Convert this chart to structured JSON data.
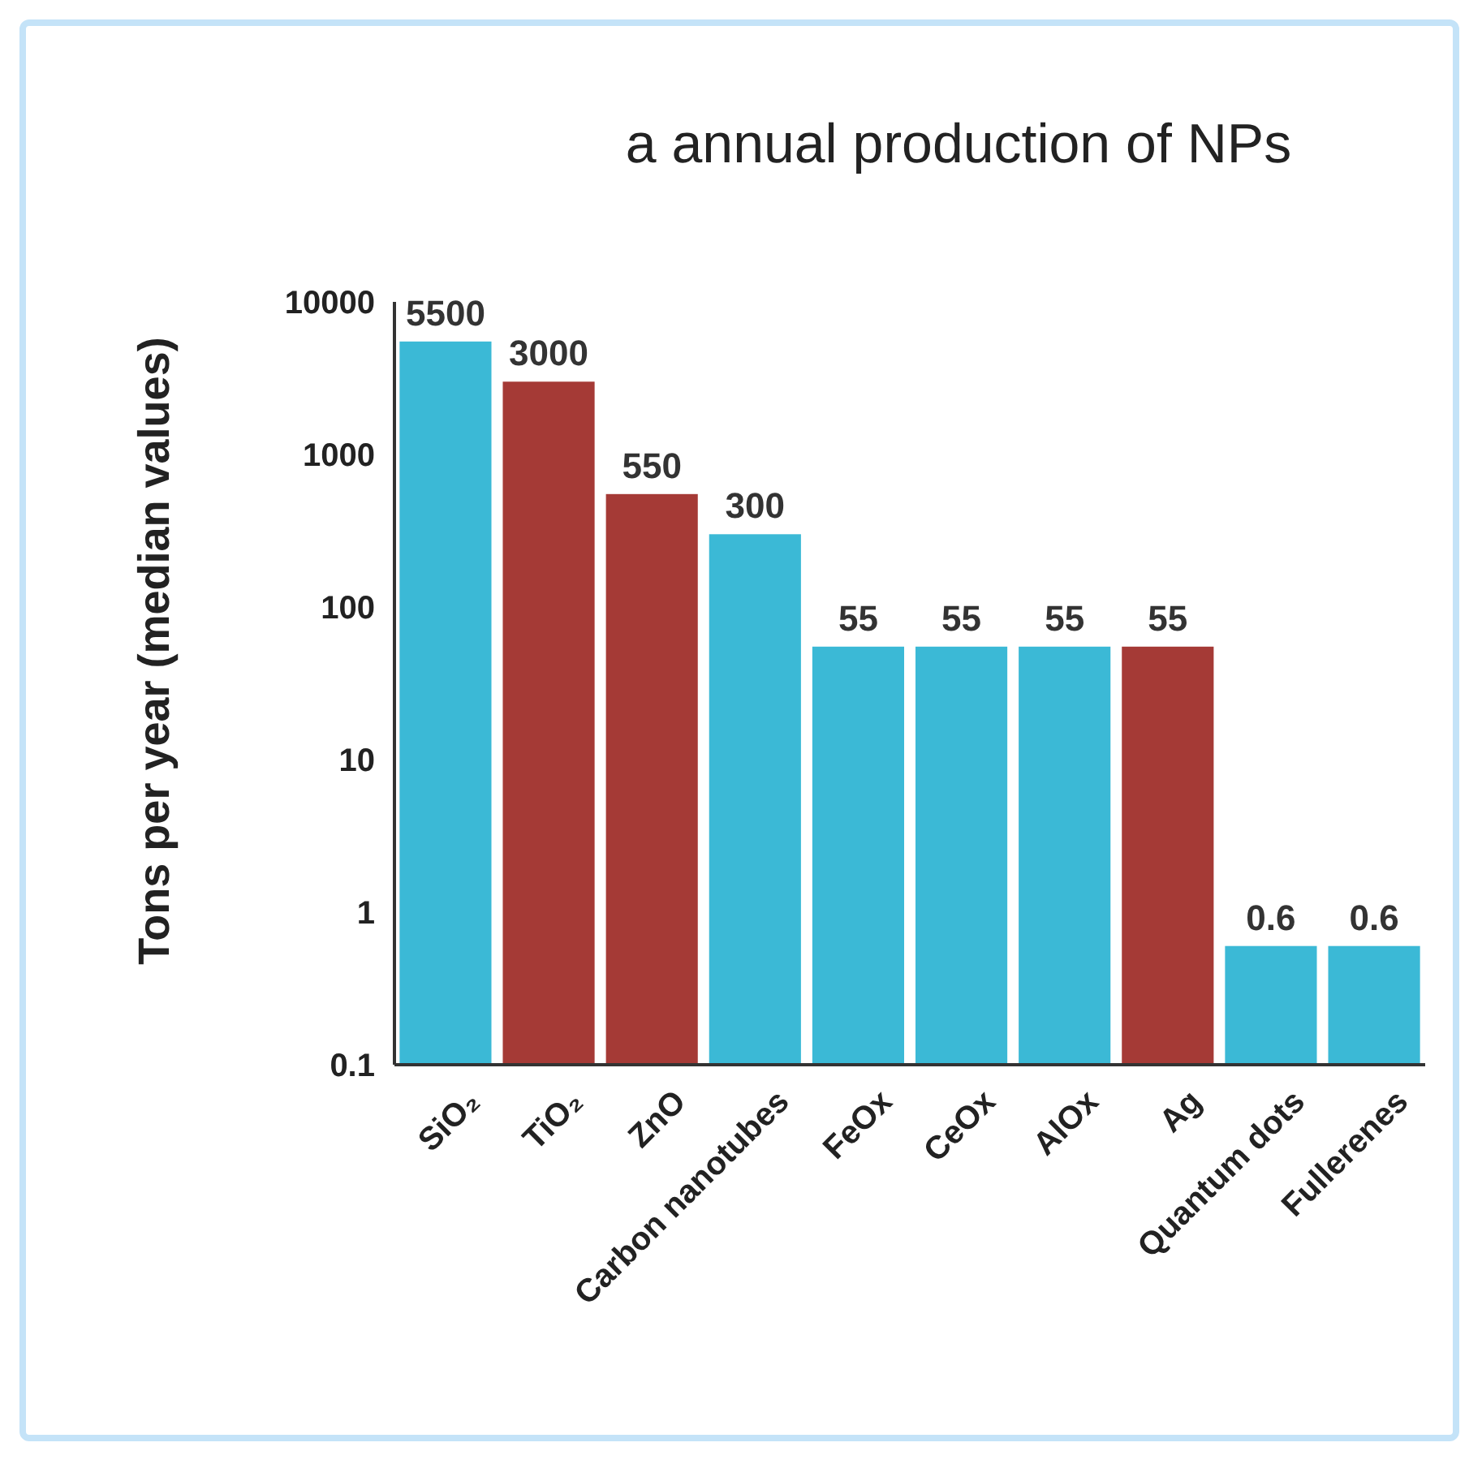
{
  "chart_data": {
    "type": "bar",
    "title": "a annual production of NPs",
    "ylabel": "Tons per year (median values)",
    "categories": [
      "SiO₂",
      "TiO₂",
      "ZnO",
      "Carbon nanotubes",
      "FeOx",
      "CeOx",
      "AlOx",
      "Ag",
      "Quantum dots",
      "Fullerenes"
    ],
    "values": [
      5500,
      3000,
      550,
      300,
      55,
      55,
      55,
      55,
      0.6,
      0.6
    ],
    "colors": [
      "#3bb9d6",
      "#a53a36",
      "#a53a36",
      "#3bb9d6",
      "#3bb9d6",
      "#3bb9d6",
      "#3bb9d6",
      "#a53a36",
      "#3bb9d6",
      "#3bb9d6"
    ],
    "log": true,
    "ylim": [
      0.1,
      10000
    ],
    "yticks": [
      0.1,
      1,
      10,
      100,
      1000,
      10000
    ],
    "data_labels": true,
    "grid": false
  }
}
